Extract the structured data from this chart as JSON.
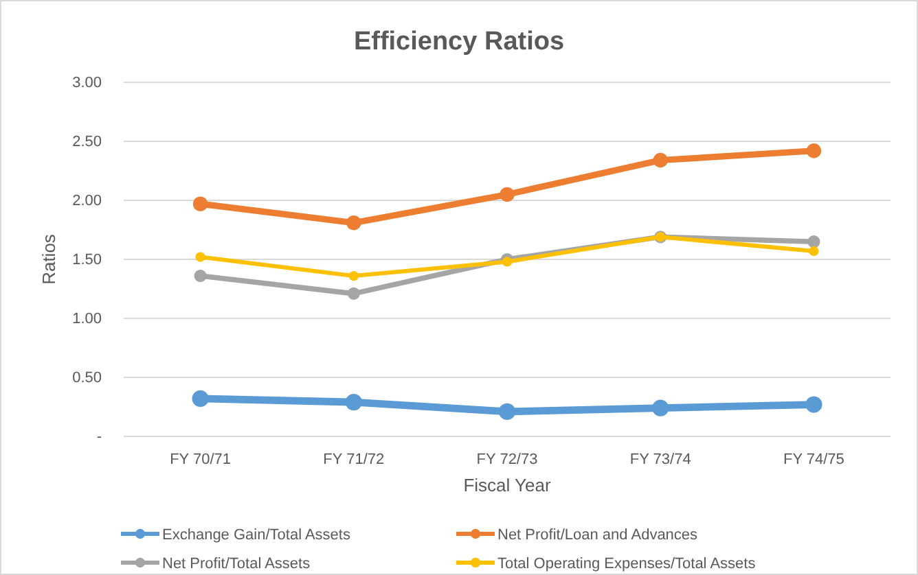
{
  "chart_data": {
    "type": "line",
    "title": "Efficiency Ratios",
    "xlabel": "Fiscal Year",
    "ylabel": "Ratios",
    "categories": [
      "FY 70/71",
      "FY 71/72",
      "FY 72/73",
      "FY 73/74",
      "FY 74/75"
    ],
    "series": [
      {
        "name": "Exchange Gain/Total Assets",
        "color": "#5b9bd5",
        "values": [
          0.32,
          0.29,
          0.21,
          0.24,
          0.27
        ]
      },
      {
        "name": "Net Profit/Loan and Advances",
        "color": "#ed7d31",
        "values": [
          1.97,
          1.81,
          2.05,
          2.34,
          2.42
        ]
      },
      {
        "name": "Net Profit/Total Assets",
        "color": "#a5a5a5",
        "values": [
          1.36,
          1.21,
          1.5,
          1.69,
          1.65
        ]
      },
      {
        "name": "Total Operating Expenses/Total Assets",
        "color": "#ffc000",
        "values": [
          1.52,
          1.36,
          1.48,
          1.69,
          1.57
        ]
      }
    ],
    "ylim": [
      0,
      3
    ],
    "yticks": [
      {
        "value": 0,
        "label": "-"
      },
      {
        "value": 0.5,
        "label": "0.50"
      },
      {
        "value": 1,
        "label": "1.00"
      },
      {
        "value": 1.5,
        "label": "1.50"
      },
      {
        "value": 2,
        "label": "2.00"
      },
      {
        "value": 2.5,
        "label": "2.50"
      },
      {
        "value": 3,
        "label": "3.00"
      }
    ],
    "grid": "y",
    "legend": "bottom",
    "marker": "circle",
    "line_style": "solid"
  }
}
